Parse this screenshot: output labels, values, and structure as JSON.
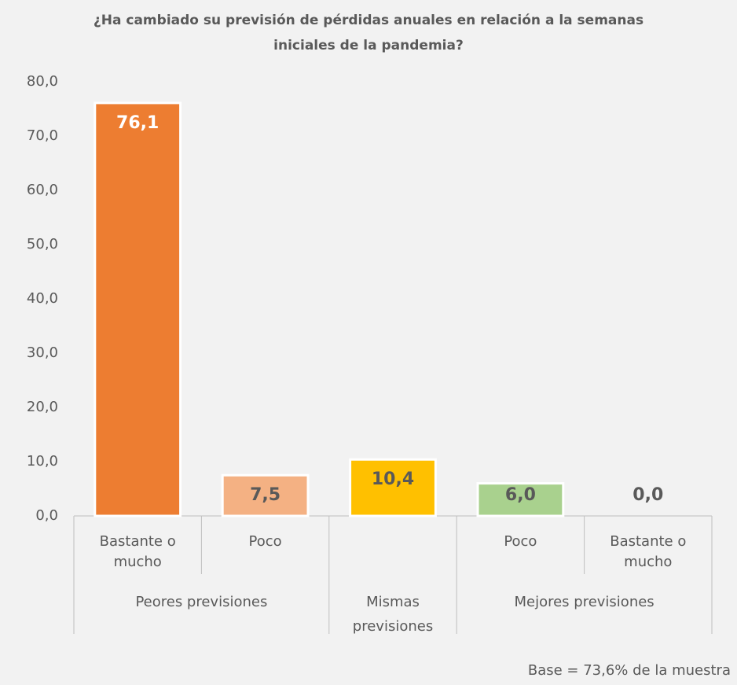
{
  "chart_data": {
    "type": "bar",
    "title": "¿Ha cambiado su previsión de pérdidas anuales en relación a la semanas iniciales de la pandemia?",
    "categories": [
      "Bastante o mucho",
      "Poco",
      null,
      "Poco",
      "Bastante o mucho"
    ],
    "groups": [
      {
        "label": "Peores previsiones",
        "span": 2
      },
      {
        "label": "Mismas previsiones",
        "span": 1
      },
      {
        "label": "Mejores previsiones",
        "span": 2
      }
    ],
    "values": [
      76.1,
      7.5,
      10.4,
      6.0,
      0.0
    ],
    "value_labels": [
      "76,1",
      "7,5",
      "10,4",
      "6,0",
      "0,0"
    ],
    "colors": [
      "#ed7d31",
      "#f4b183",
      "#ffc000",
      "#a9d18e",
      "#a9d18e"
    ],
    "label_colors": [
      "#ffffff",
      "#595959",
      "#595959",
      "#595959",
      "#595959"
    ],
    "ylim": [
      0,
      80
    ],
    "yticks": [
      {
        "value": 0,
        "label": "0,0"
      },
      {
        "value": 10,
        "label": "10,0"
      },
      {
        "value": 20,
        "label": "20,0"
      },
      {
        "value": 30,
        "label": "30,0"
      },
      {
        "value": 40,
        "label": "40,0"
      },
      {
        "value": 50,
        "label": "50,0"
      },
      {
        "value": 60,
        "label": "60,0"
      },
      {
        "value": 70,
        "label": "70,0"
      },
      {
        "value": 80,
        "label": "80,0"
      }
    ],
    "grid": false,
    "footnote": "Base = 73,6% de la muestra"
  }
}
